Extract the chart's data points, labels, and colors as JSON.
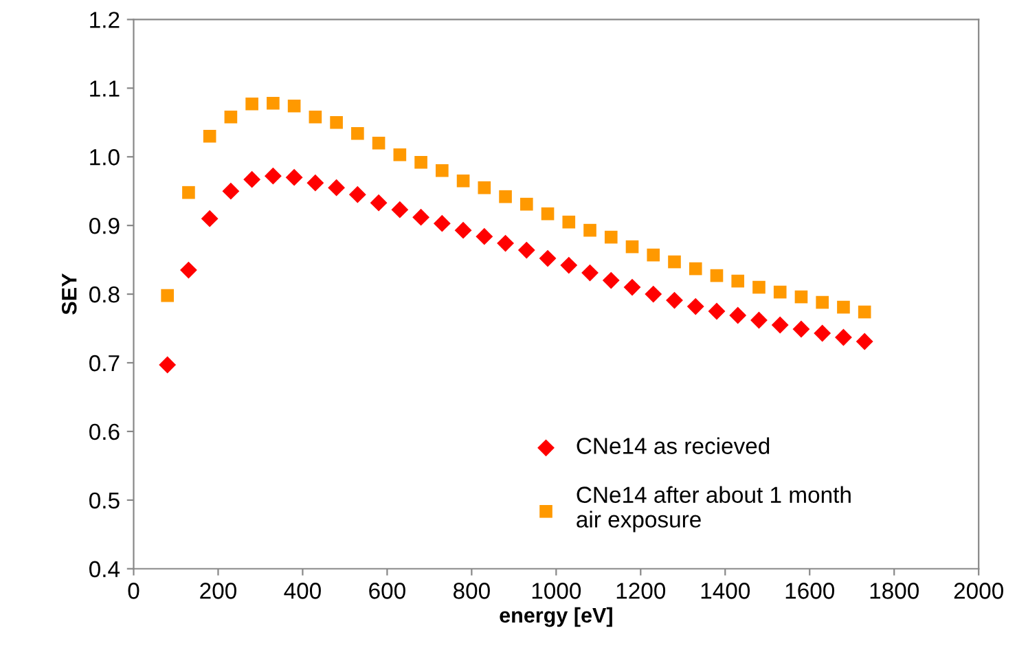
{
  "chart_data": {
    "type": "scatter",
    "xlabel": "energy [eV]",
    "ylabel": "SEY",
    "x": [
      80,
      130,
      180,
      230,
      280,
      330,
      380,
      430,
      480,
      530,
      580,
      630,
      680,
      730,
      780,
      830,
      880,
      930,
      980,
      1030,
      1080,
      1130,
      1180,
      1230,
      1280,
      1330,
      1380,
      1430,
      1480,
      1530,
      1580,
      1630,
      1680,
      1730
    ],
    "series": [
      {
        "name": "CNe14 as recieved",
        "color": "#ff0000",
        "marker": "diamond",
        "values": [
          0.697,
          0.835,
          0.91,
          0.95,
          0.967,
          0.972,
          0.97,
          0.962,
          0.955,
          0.945,
          0.933,
          0.923,
          0.912,
          0.903,
          0.893,
          0.884,
          0.874,
          0.864,
          0.852,
          0.842,
          0.831,
          0.82,
          0.81,
          0.8,
          0.791,
          0.782,
          0.775,
          0.769,
          0.762,
          0.755,
          0.749,
          0.743,
          0.737,
          0.731
        ]
      },
      {
        "name": "CNe14 after about 1 month\nair exposure",
        "color": "#ff9900",
        "marker": "square",
        "values": [
          0.798,
          0.948,
          1.03,
          1.058,
          1.077,
          1.078,
          1.074,
          1.058,
          1.05,
          1.034,
          1.02,
          1.003,
          0.992,
          0.98,
          0.965,
          0.955,
          0.942,
          0.931,
          0.917,
          0.905,
          0.893,
          0.883,
          0.869,
          0.857,
          0.847,
          0.837,
          0.827,
          0.819,
          0.81,
          0.803,
          0.796,
          0.788,
          0.781,
          0.774
        ]
      }
    ],
    "xlim": [
      0,
      2000
    ],
    "xticks": [
      0,
      200,
      400,
      600,
      800,
      1000,
      1200,
      1400,
      1600,
      1800,
      2000
    ],
    "ylim": [
      0.4,
      1.2
    ],
    "yticks": [
      {
        "value": 0.4,
        "label": "0.4"
      },
      {
        "value": 0.5,
        "label": "0.5"
      },
      {
        "value": 0.6,
        "label": "0.6"
      },
      {
        "value": 0.7,
        "label": "0.7"
      },
      {
        "value": 0.8,
        "label": "0.8"
      },
      {
        "value": 0.9,
        "label": "0.9"
      },
      {
        "value": 1.0,
        "label": "1.0"
      },
      {
        "value": 1.1,
        "label": "1.1"
      },
      {
        "value": 1.2,
        "label": "1.2"
      }
    ],
    "grid": false,
    "legend": "bottom right"
  }
}
